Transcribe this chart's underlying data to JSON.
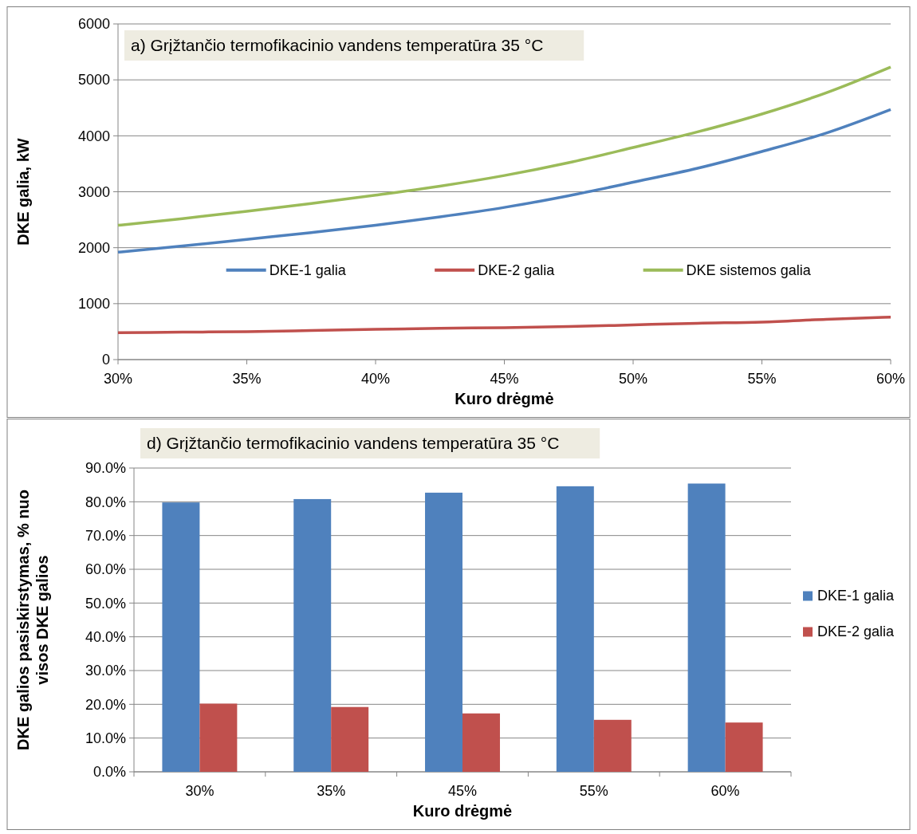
{
  "chart_data": [
    {
      "type": "line",
      "title": "a) Grįžtančio termofikacinio vandens temperatūra 35 °C",
      "xlabel": "Kuro drėgmė",
      "ylabel": "DKE galia, kW",
      "x": [
        30,
        32.5,
        35,
        37.5,
        40,
        42.5,
        45,
        47.5,
        50,
        52.5,
        55,
        57.5,
        60
      ],
      "series": [
        {
          "name": "DKE-1 galia",
          "color": "#4f81bd",
          "values": [
            1920,
            2030,
            2150,
            2270,
            2400,
            2550,
            2720,
            2930,
            3170,
            3420,
            3720,
            4050,
            4470
          ]
        },
        {
          "name": "DKE-2 galia",
          "color": "#c0504d",
          "values": [
            480,
            490,
            500,
            520,
            540,
            560,
            570,
            590,
            620,
            650,
            670,
            720,
            760
          ]
        },
        {
          "name": "DKE sistemos galia",
          "color": "#9bbb59",
          "values": [
            2400,
            2520,
            2650,
            2790,
            2940,
            3100,
            3290,
            3520,
            3790,
            4070,
            4390,
            4770,
            5230
          ]
        }
      ],
      "xlim": [
        30,
        60
      ],
      "xticks": [
        {
          "value": 30,
          "label": "30%"
        },
        {
          "value": 35,
          "label": "35%"
        },
        {
          "value": 40,
          "label": "40%"
        },
        {
          "value": 45,
          "label": "45%"
        },
        {
          "value": 50,
          "label": "50%"
        },
        {
          "value": 55,
          "label": "55%"
        },
        {
          "value": 60,
          "label": "60%"
        }
      ],
      "ylim": [
        0,
        6000
      ],
      "yticks": [
        0,
        1000,
        2000,
        3000,
        4000,
        5000,
        6000
      ],
      "grid": "y",
      "legend": "center",
      "marker": "none",
      "line_style": "solid"
    },
    {
      "type": "bar",
      "title": "d) Grįžtančio termofikacinio vandens temperatūra 35 °C",
      "xlabel": "Kuro drėgmė",
      "ylabel": "DKE galios pasiskirstymas, % nuo visos DKE galios",
      "categories": [
        "30%",
        "35%",
        "45%",
        "55%",
        "60%"
      ],
      "series": [
        {
          "name": "DKE-1 galia",
          "color": "#4f81bd",
          "values": [
            79.8,
            80.8,
            82.7,
            84.6,
            85.4
          ]
        },
        {
          "name": "DKE-2 galia",
          "color": "#c0504d",
          "values": [
            20.2,
            19.2,
            17.3,
            15.4,
            14.6
          ]
        }
      ],
      "ylim": [
        0,
        90
      ],
      "yticks": [
        {
          "value": 0,
          "label": "0.0%"
        },
        {
          "value": 10,
          "label": "10.0%"
        },
        {
          "value": 20,
          "label": "20.0%"
        },
        {
          "value": 30,
          "label": "30.0%"
        },
        {
          "value": 40,
          "label": "40.0%"
        },
        {
          "value": 50,
          "label": "50.0%"
        },
        {
          "value": 60,
          "label": "60.0%"
        },
        {
          "value": 70,
          "label": "70.0%"
        },
        {
          "value": 80,
          "label": "80.0%"
        },
        {
          "value": 90,
          "label": "90.0%"
        }
      ],
      "grid": "y",
      "legend": "right"
    }
  ]
}
